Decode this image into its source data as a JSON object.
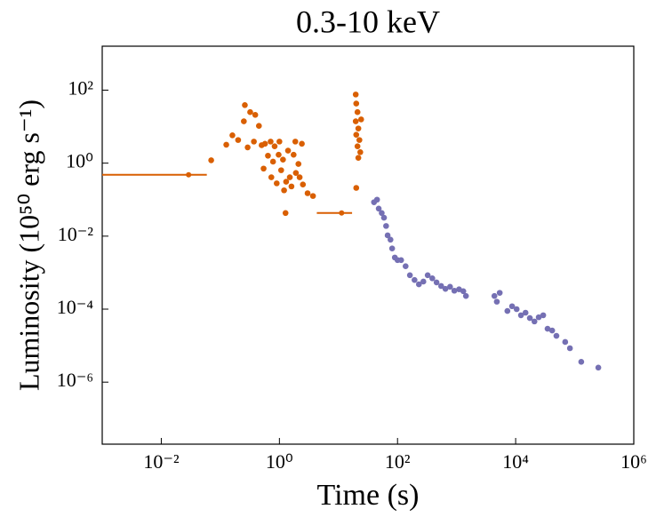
{
  "chart_data": {
    "type": "scatter",
    "title": "0.3-10 keV",
    "xlabel": "Time (s)",
    "ylabel": "Luminosity (10⁵⁰ erg s⁻¹)",
    "xscale": "log",
    "yscale": "log",
    "xlim": [
      0.001,
      1000000
    ],
    "ylim": [
      2e-08,
      1600
    ],
    "xticks": [
      {
        "value": 0.01,
        "label": "10⁻²"
      },
      {
        "value": 1,
        "label": "10⁰"
      },
      {
        "value": 100,
        "label": "10²"
      },
      {
        "value": 10000,
        "label": "10⁴"
      },
      {
        "value": 1000000,
        "label": "10⁶"
      }
    ],
    "yticks": [
      {
        "value": 1e-06,
        "label": "10⁻⁶"
      },
      {
        "value": 0.0001,
        "label": "10⁻⁴"
      },
      {
        "value": 0.01,
        "label": "10⁻²"
      },
      {
        "value": 1,
        "label": "10⁰"
      },
      {
        "value": 100,
        "label": "10²"
      }
    ],
    "series": [
      {
        "color": "#d95f02",
        "x": [
          0.07,
          0.126,
          0.16,
          0.2,
          0.25,
          0.26,
          0.29,
          0.32,
          0.37,
          0.39,
          0.45,
          0.5,
          0.54,
          0.57,
          0.64,
          0.71,
          0.73,
          0.78,
          0.83,
          0.9,
          0.97,
          1.0,
          1.07,
          1.15,
          1.2,
          1.27,
          1.3,
          1.4,
          1.5,
          1.6,
          1.74,
          1.86,
          1.9,
          2.1,
          2.2,
          2.4,
          2.5,
          3.0,
          3.7,
          19.6,
          20,
          21,
          19.6,
          21.7,
          20,
          22.6,
          21,
          23.4,
          21.7,
          24.2,
          20
        ],
        "values": [
          1.2,
          3.2,
          5.8,
          4.3,
          14,
          39,
          2.7,
          25,
          3.9,
          21,
          10.5,
          3.1,
          0.71,
          3.4,
          1.6,
          3.9,
          0.41,
          1.1,
          2.9,
          0.28,
          1.7,
          3.9,
          0.64,
          1.25,
          0.18,
          0.043,
          0.31,
          2.2,
          0.41,
          0.23,
          1.7,
          3.9,
          0.54,
          0.95,
          0.41,
          3.4,
          0.26,
          0.15,
          0.126,
          76,
          43,
          25,
          14,
          8.9,
          6,
          4.3,
          2.9,
          2,
          1.4,
          15.8,
          0.21
        ]
      },
      {
        "color": "#7570b3",
        "x": [
          40,
          45,
          48,
          54,
          59,
          64,
          68,
          76,
          81,
          90,
          100,
          115,
          137,
          162,
          194,
          230,
          274,
          324,
          388,
          458,
          548,
          648,
          775,
          916,
          1100,
          1300,
          1440,
          4370,
          4800,
          5370,
          7250,
          8700,
          10400,
          12300,
          14700,
          17400,
          20800,
          24600,
          29300,
          34700,
          41500,
          49000,
          69000,
          83000,
          129000,
          251000
        ],
        "values": [
          0.085,
          0.1,
          0.057,
          0.043,
          0.032,
          0.019,
          0.0105,
          0.008,
          0.0046,
          0.0026,
          0.0022,
          0.0022,
          0.0015,
          0.00085,
          0.00063,
          0.00048,
          0.00057,
          0.00085,
          0.0007,
          0.00054,
          0.00043,
          0.00036,
          0.00041,
          0.00032,
          0.00035,
          0.00031,
          0.00023,
          0.00023,
          0.00016,
          0.00028,
          8.9e-05,
          0.00012,
          0.0001,
          6.8e-05,
          8e-05,
          5.7e-05,
          4.6e-05,
          6e-05,
          6.8e-05,
          2.9e-05,
          2.6e-05,
          1.86e-05,
          1.26e-05,
          8.5e-06,
          3.6e-06,
          2.5e-06
        ]
      }
    ],
    "error_bars": [
      {
        "x": 0.029,
        "y": 0.48,
        "x_lo": 0.001,
        "x_hi": 0.059
      },
      {
        "x": 11.3,
        "y": 0.043,
        "x_lo": 4.3,
        "x_hi": 17
      }
    ]
  }
}
